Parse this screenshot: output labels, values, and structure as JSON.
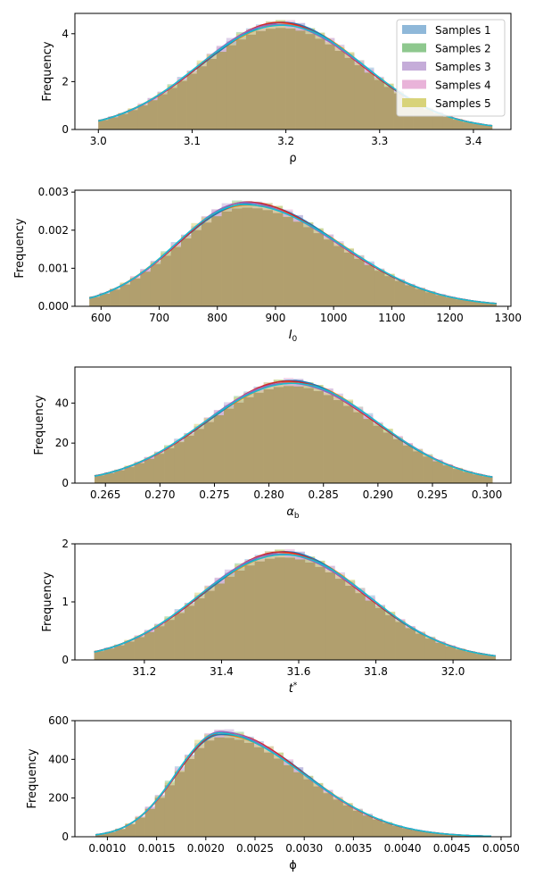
{
  "chart_data": [
    {
      "type": "histogram",
      "xlabel": "ρ",
      "ylabel": "Frequency",
      "xlim": [
        2.975,
        3.44
      ],
      "ylim": [
        0,
        4.85
      ],
      "xticks": [
        3.0,
        3.1,
        3.2,
        3.3,
        3.4
      ],
      "xtick_labels": [
        "3.0",
        "3.1",
        "3.2",
        "3.3",
        "3.4"
      ],
      "yticks": [
        0,
        2,
        4
      ],
      "ytick_labels": [
        "0",
        "2",
        "4"
      ],
      "dist": {
        "kind": "normal",
        "mu": 3.195,
        "sigma": 0.087,
        "peak": 4.42
      },
      "range": [
        3.0,
        3.42
      ],
      "bins": 40,
      "legend": {
        "position": "top-right",
        "entries": [
          "Samples 1",
          "Samples 2",
          "Samples 3",
          "Samples 4",
          "Samples 5"
        ]
      }
    },
    {
      "type": "histogram",
      "xlabel": "I0",
      "ylabel": "Frequency",
      "xlim": [
        555,
        1305
      ],
      "ylim": [
        0,
        0.00305
      ],
      "xticks": [
        600,
        700,
        800,
        900,
        1000,
        1100,
        1200,
        1300
      ],
      "xtick_labels": [
        "600",
        "700",
        "800",
        "900",
        "1000",
        "1100",
        "1200",
        "1300"
      ],
      "yticks": [
        0,
        0.001,
        0.002,
        0.003
      ],
      "ytick_labels": [
        "0.000",
        "0.001",
        "0.002",
        "0.003"
      ],
      "dist": {
        "kind": "skewnormal",
        "mu": 850,
        "sigL": 120,
        "sigR": 160,
        "peak": 0.0027
      },
      "range": [
        580,
        1280
      ],
      "bins": 40
    },
    {
      "type": "histogram",
      "xlabel": "αb",
      "ylabel": "Frequency",
      "xlim": [
        0.2622,
        0.3022
      ],
      "ylim": [
        0,
        58
      ],
      "xticks": [
        0.265,
        0.27,
        0.275,
        0.28,
        0.285,
        0.29,
        0.295,
        0.3
      ],
      "xtick_labels": [
        "0.265",
        "0.270",
        "0.275",
        "0.280",
        "0.285",
        "0.290",
        "0.295",
        "0.300"
      ],
      "yticks": [
        0,
        20,
        40
      ],
      "ytick_labels": [
        "0",
        "20",
        "40"
      ],
      "dist": {
        "kind": "normal",
        "mu": 0.282,
        "sigma": 0.0078,
        "peak": 50.5
      },
      "range": [
        0.264,
        0.3005
      ],
      "bins": 40
    },
    {
      "type": "histogram",
      "xlabel": "t*",
      "ylabel": "Frequency",
      "xlim": [
        31.02,
        32.15
      ],
      "ylim": [
        0,
        2.0
      ],
      "xticks": [
        31.2,
        31.4,
        31.6,
        31.8,
        32.0
      ],
      "xtick_labels": [
        "31.2",
        "31.4",
        "31.6",
        "31.8",
        "32.0"
      ],
      "yticks": [
        0,
        1,
        2
      ],
      "ytick_labels": [
        "0",
        "1",
        "2"
      ],
      "dist": {
        "kind": "normal",
        "mu": 31.56,
        "sigma": 0.215,
        "peak": 1.84
      },
      "range": [
        31.07,
        32.11
      ],
      "bins": 40
    },
    {
      "type": "histogram",
      "xlabel": "ϕ",
      "ylabel": "Frequency",
      "xlim": [
        0.00067,
        0.0051
      ],
      "ylim": [
        0,
        600
      ],
      "xticks": [
        0.001,
        0.0015,
        0.002,
        0.0025,
        0.003,
        0.0035,
        0.004,
        0.0045,
        0.005
      ],
      "xtick_labels": [
        "0.0010",
        "0.0015",
        "0.0020",
        "0.0025",
        "0.0030",
        "0.0035",
        "0.0040",
        "0.0045",
        "0.0050"
      ],
      "yticks": [
        0,
        200,
        400,
        600
      ],
      "ytick_labels": [
        "0",
        "200",
        "400",
        "600"
      ],
      "dist": {
        "kind": "skewnormal",
        "mu": 0.00215,
        "sigL": 0.00045,
        "sigR": 0.00085,
        "peak": 535
      },
      "range": [
        0.00088,
        0.0049
      ],
      "bins": 40
    }
  ],
  "series_colors": [
    "#8fb8d9",
    "#8ec88e",
    "#c5acd9",
    "#e9b3d9",
    "#d8d37a"
  ],
  "kde_colors": [
    "#ff7f0e",
    "#1f77b4",
    "#d62728",
    "#9467bd",
    "#17becf"
  ],
  "fill_color": "#b19f6e"
}
